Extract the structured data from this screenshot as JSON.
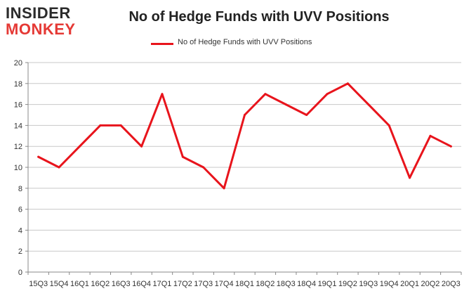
{
  "logo": {
    "line1": "INSIDER",
    "line2": "MONKEY"
  },
  "colors": {
    "series": "#e8141c",
    "grid": "#c8c8c8",
    "logo_accent": "#e53935"
  },
  "chart_data": {
    "type": "line",
    "title": "No of Hedge Funds with UVV Positions",
    "xlabel": "",
    "ylabel": "",
    "ylim": [
      0,
      20
    ],
    "yticks": [
      0,
      2,
      4,
      6,
      8,
      10,
      12,
      14,
      16,
      18,
      20
    ],
    "grid": "horizontal",
    "legend_position": "top",
    "categories": [
      "15Q3",
      "15Q4",
      "16Q1",
      "16Q2",
      "16Q3",
      "16Q4",
      "17Q1",
      "17Q2",
      "17Q3",
      "17Q4",
      "18Q1",
      "18Q2",
      "18Q3",
      "18Q4",
      "19Q1",
      "19Q2",
      "19Q3",
      "19Q4",
      "20Q1",
      "20Q2",
      "20Q3"
    ],
    "series": [
      {
        "name": "No of Hedge Funds with UVV Positions",
        "values": [
          11,
          10,
          12,
          14,
          14,
          12,
          17,
          11,
          10,
          8,
          15,
          17,
          16,
          15,
          17,
          18,
          16,
          14,
          9,
          13,
          12
        ]
      }
    ]
  }
}
